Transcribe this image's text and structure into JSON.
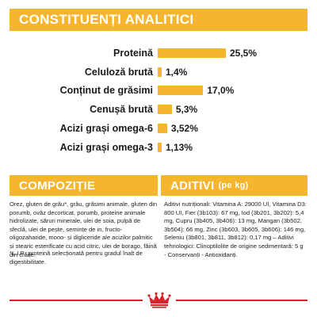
{
  "analytic": {
    "title": "CONSTITUENȚI ANALITICI",
    "items": [
      {
        "label": "Proteină",
        "value": "25,5%",
        "amount": 25.5
      },
      {
        "label": "Celuloză brută",
        "value": "1,4%",
        "amount": 1.4
      },
      {
        "label": "Conținut de grăsimi",
        "value": "17,0%",
        "amount": 17.0
      },
      {
        "label": "Cenușă brută",
        "value": "5,3%",
        "amount": 5.3
      },
      {
        "label": "Acizi grași omega-6",
        "value": "3,52%",
        "amount": 3.52
      },
      {
        "label": "Acizi grași omega-3",
        "value": "1,13%",
        "amount": 1.13
      }
    ],
    "max_amount": 25.5
  },
  "composition": {
    "title": "COMPOZIȚIE",
    "text": "Orez, gluten de grâu*, grâu, grăsimi animale, gluten din porumb, ovăz decorticat, porumb, proteine animale hidrolizate, săruri minerale, ulei de soia, pulpă de sfeclă, ulei de pește, semințe de in, fructo-oligozaharide, mono- și digliceride ale acizilor palmitic și stearic esterificate cu acid citric, ulei de borago, făină din crăițe.",
    "note": "*L.I.P.: proteină selecționată pentru gradul înalt de digestibilitate."
  },
  "additives": {
    "title": "ADITIVI",
    "unit": "(pe kg)",
    "text": "Aditivi nutriționali: Vitamina A: 29000 UI, Vitamina D3: 800 UI, Fier (3b103): 67 mg, Iod (3b201, 3b202): 5,4 mg, Cupru (3b405, 3b406): 13 mg, Mangan (3b502, 3b504): 66 mg, Zinc (3b603, 3b605, 3b606): 146 mg, Seleniu (3b801, 3b811, 3b812): 0,17 mg – Aditivi tehnologici: Clinoptilolite de origine sedimentară: 5 g - Conservanți - Antioxidanți."
  },
  "colors": {
    "accent": "#f5b52e",
    "brand_red": "#d9222a"
  },
  "logo": {
    "icon": "crown-icon"
  }
}
